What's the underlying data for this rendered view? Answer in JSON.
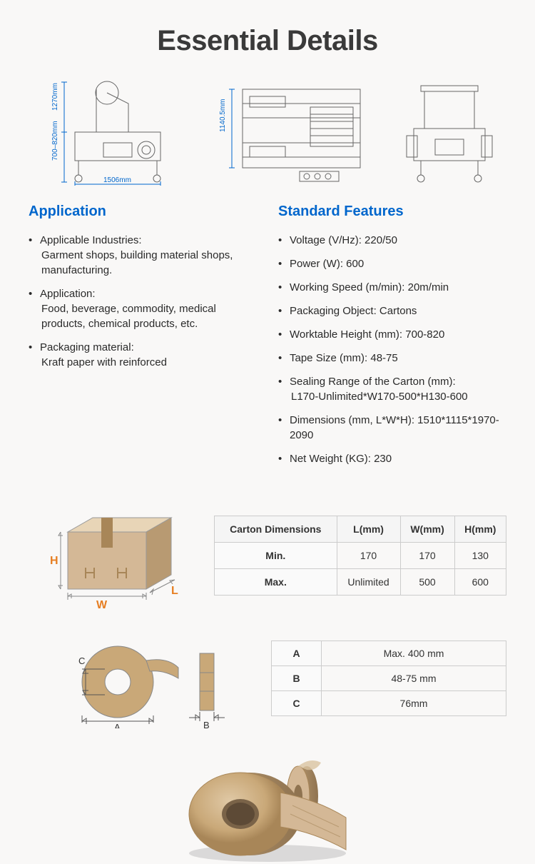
{
  "title": "Essential Details",
  "diagrams": {
    "dim1_height_total": "1270mm",
    "dim1_height_lower": "700–820mm",
    "dim1_width": "1506mm",
    "dim2_height": "1140.5mm",
    "colors": {
      "dim_line": "#0066cc",
      "outline": "#666666"
    }
  },
  "application": {
    "title": "Application",
    "items": [
      {
        "label": "Applicable Industries:",
        "value": "Garment shops, building material shops, manufacturing."
      },
      {
        "label": "Application:",
        "value": "Food, beverage, commodity, medical products, chemical products, etc."
      },
      {
        "label": "Packaging material:",
        "value": "Kraft paper with reinforced"
      }
    ]
  },
  "features": {
    "title": "Standard Features",
    "items": [
      "Voltage (V/Hz): 220/50",
      "Power (W): 600",
      "Working Speed (m/min): 20m/min",
      "Packaging Object: Cartons",
      "Worktable Height (mm): 700-820",
      "Tape Size (mm): 48-75",
      "Sealing Range of the Carton (mm):\nL170-Unlimited*W170-500*H130-600",
      "Dimensions (mm, L*W*H): 1510*1115*1970-2090",
      "Net Weight (KG): 230"
    ]
  },
  "carton_table": {
    "headers": [
      "Carton Dimensions",
      "L(mm)",
      "W(mm)",
      "H(mm)"
    ],
    "rows": [
      [
        "Min.",
        "170",
        "170",
        "130"
      ],
      [
        "Max.",
        "Unlimited",
        "500",
        "600"
      ]
    ]
  },
  "tape_table": {
    "rows": [
      [
        "A",
        "Max. 400 mm"
      ],
      [
        "B",
        "48-75 mm"
      ],
      [
        "C",
        "76mm"
      ]
    ]
  },
  "box_labels": {
    "H": "H",
    "W": "W",
    "L": "L"
  },
  "tape_labels": {
    "A": "A",
    "B": "B",
    "C": "C"
  },
  "colors": {
    "title": "#3a3a3a",
    "heading": "#0066cc",
    "text": "#2a2a2a",
    "border": "#cccccc",
    "kraft": "#c9a878",
    "kraft_dark": "#a88658",
    "box_face": "#d4b896",
    "box_top": "#e8d5b7",
    "box_side": "#b89a72",
    "accent": "#e67e22"
  }
}
